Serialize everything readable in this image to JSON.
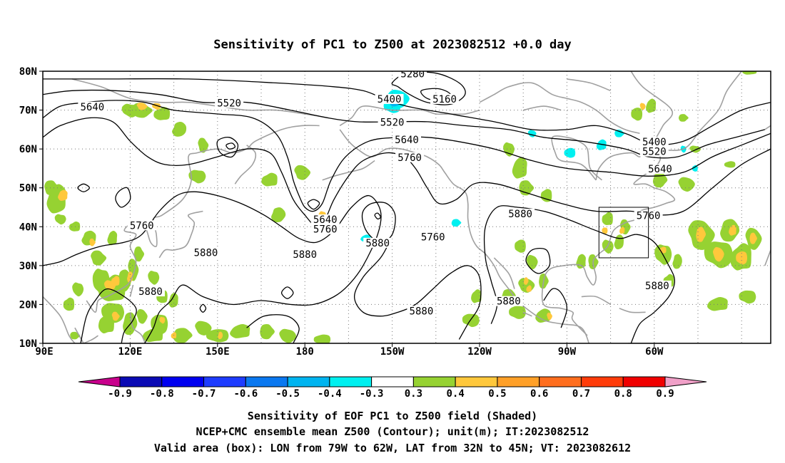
{
  "title": "Sensitivity of PC1 to Z500 at 2023082512 +0.0 day",
  "lat_ticks": [
    "80N",
    "70N",
    "60N",
    "50N",
    "40N",
    "30N",
    "20N",
    "10N"
  ],
  "lon_ticks": [
    "90E",
    "120E",
    "150E",
    "180",
    "150W",
    "120W",
    "90W",
    "60W"
  ],
  "contour_labels": [
    {
      "text": "5280",
      "lon": 217,
      "lat": 79
    },
    {
      "text": "5160",
      "lon": 228,
      "lat": 72.5
    },
    {
      "text": "5400",
      "lon": 209,
      "lat": 72.5
    },
    {
      "text": "5520",
      "lon": 210,
      "lat": 66.5
    },
    {
      "text": "5640",
      "lon": 215,
      "lat": 62
    },
    {
      "text": "5760",
      "lon": 216,
      "lat": 57.5
    },
    {
      "text": "5520",
      "lon": 154,
      "lat": 71.5
    },
    {
      "text": "5640",
      "lon": 107,
      "lat": 70.5
    },
    {
      "text": "5640",
      "lon": 187,
      "lat": 41.5
    },
    {
      "text": "5760",
      "lon": 187,
      "lat": 39
    },
    {
      "text": "5760",
      "lon": 124,
      "lat": 40
    },
    {
      "text": "5880",
      "lon": 146,
      "lat": 33
    },
    {
      "text": "5880",
      "lon": 180,
      "lat": 32.5
    },
    {
      "text": "5880",
      "lon": 205,
      "lat": 35.5
    },
    {
      "text": "5760",
      "lon": 224,
      "lat": 37
    },
    {
      "text": "5880",
      "lon": 254,
      "lat": 43
    },
    {
      "text": "5880",
      "lon": 127,
      "lat": 23
    },
    {
      "text": "5880",
      "lon": 220,
      "lat": 18
    },
    {
      "text": "5880",
      "lon": 250,
      "lat": 20.5
    },
    {
      "text": "5760",
      "lon": 298,
      "lat": 42.5
    },
    {
      "text": "5880",
      "lon": 301,
      "lat": 24.5
    },
    {
      "text": "5400",
      "lon": 300,
      "lat": 61.5
    },
    {
      "text": "5520",
      "lon": 300,
      "lat": 59
    },
    {
      "text": "5640",
      "lon": 302,
      "lat": 54.5
    }
  ],
  "colorbar": {
    "labels": [
      "-0.9",
      "-0.8",
      "-0.7",
      "-0.6",
      "-0.5",
      "-0.4",
      "-0.3",
      "0.3",
      "0.4",
      "0.5",
      "0.6",
      "0.7",
      "0.8",
      "0.9"
    ],
    "low_arrow_color": "#c8008c",
    "high_arrow_color": "#f0a0c8",
    "colors": [
      "#0a0ab4",
      "#0000f0",
      "#1e3cff",
      "#0a78f0",
      "#00b4f0",
      "#00f0f0",
      "#ffffff",
      "#96d232",
      "#ffc83c",
      "#ffa028",
      "#ff6e1e",
      "#ff3c0a",
      "#f00000"
    ]
  },
  "valid_box": {
    "lon_min": -79,
    "lon_max": -62,
    "lat_min": 32,
    "lat_max": 45
  },
  "caption": [
    "Sensitivity of EOF PC1 to Z500 field (Shaded)",
    "NCEP+CMC ensemble mean Z500 (Contour); unit(m); IT:2023082512",
    "Valid area (box): LON from 79W to 62W, LAT from 32N to 45N; VT: 2023082612"
  ],
  "colors": {
    "positive_04": "#96d232",
    "positive_05": "#ffc83c",
    "negative_04": "#00f0f0",
    "negative_05": "#00b4f0",
    "coastline": "#a0a0a0",
    "contour": "#000000"
  }
}
